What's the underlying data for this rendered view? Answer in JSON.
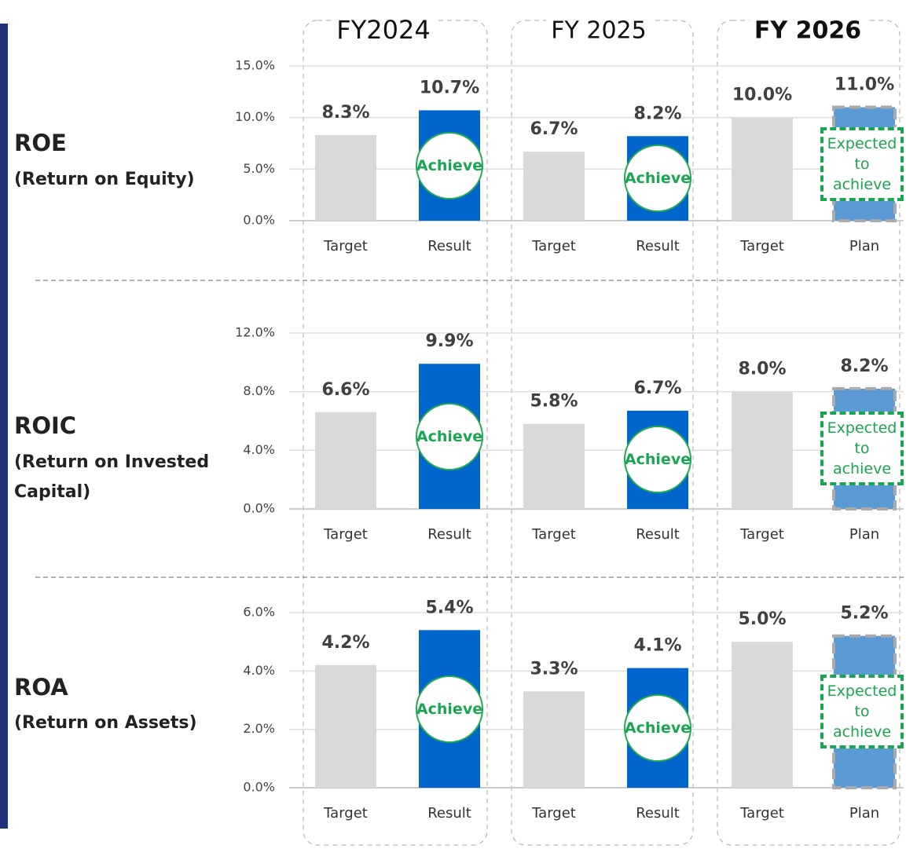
{
  "column_headers": [
    "FY2024",
    "FY 2025",
    "FY 2026"
  ],
  "chart_data": [
    {
      "type": "bar",
      "title": "ROE",
      "subtitle": "(Return on Equity)",
      "categories": [
        "Target",
        "Result",
        "Target",
        "Result",
        "Target",
        "Plan"
      ],
      "values": [
        8.3,
        10.7,
        6.7,
        8.2,
        10.0,
        11.0
      ],
      "value_labels": [
        "8.3%",
        "10.7%",
        "6.7%",
        "8.2%",
        "10.0%",
        "11.0%"
      ],
      "colors": [
        "#d9d9d9",
        "#0066cc",
        "#d9d9d9",
        "#0066cc",
        "#d9d9d9",
        "#5b9bd5"
      ],
      "annotations": [
        null,
        "Achieve",
        null,
        "Achieve",
        null,
        "Expected to achieve"
      ],
      "ylim": [
        0,
        15
      ],
      "yticks": [
        {
          "value": 0,
          "label": "0.0%"
        },
        {
          "value": 5,
          "label": "5.0%"
        },
        {
          "value": 10,
          "label": "10.0%"
        },
        {
          "value": 15,
          "label": "15.0%"
        }
      ],
      "grid": true
    },
    {
      "type": "bar",
      "title": "ROIC",
      "subtitle": "(Return on Invested Capital)",
      "categories": [
        "Target",
        "Result",
        "Target",
        "Result",
        "Target",
        "Plan"
      ],
      "values": [
        6.6,
        9.9,
        5.8,
        6.7,
        8.0,
        8.2
      ],
      "value_labels": [
        "6.6%",
        "9.9%",
        "5.8%",
        "6.7%",
        "8.0%",
        "8.2%"
      ],
      "colors": [
        "#d9d9d9",
        "#0066cc",
        "#d9d9d9",
        "#0066cc",
        "#d9d9d9",
        "#5b9bd5"
      ],
      "annotations": [
        null,
        "Achieve",
        null,
        "Achieve",
        null,
        "Expected to achieve"
      ],
      "ylim": [
        0,
        12
      ],
      "yticks": [
        {
          "value": 0,
          "label": "0.0%"
        },
        {
          "value": 4,
          "label": "4.0%"
        },
        {
          "value": 8,
          "label": "8.0%"
        },
        {
          "value": 12,
          "label": "12.0%"
        }
      ],
      "grid": true
    },
    {
      "type": "bar",
      "title": "ROA",
      "subtitle": "(Return on Assets)",
      "categories": [
        "Target",
        "Result",
        "Target",
        "Result",
        "Target",
        "Plan"
      ],
      "values": [
        4.2,
        5.4,
        3.3,
        4.1,
        5.0,
        5.2
      ],
      "value_labels": [
        "4.2%",
        "5.4%",
        "3.3%",
        "4.1%",
        "5.0%",
        "5.2%"
      ],
      "colors": [
        "#d9d9d9",
        "#0066cc",
        "#d9d9d9",
        "#0066cc",
        "#d9d9d9",
        "#5b9bd5"
      ],
      "annotations": [
        null,
        "Achieve",
        null,
        "Achieve",
        null,
        "Expected to achieve"
      ],
      "ylim": [
        0,
        6
      ],
      "yticks": [
        {
          "value": 0,
          "label": "0.0%"
        },
        {
          "value": 2,
          "label": "2.0%"
        },
        {
          "value": 4,
          "label": "4.0%"
        },
        {
          "value": 6,
          "label": "6.0%"
        }
      ],
      "grid": true
    }
  ]
}
